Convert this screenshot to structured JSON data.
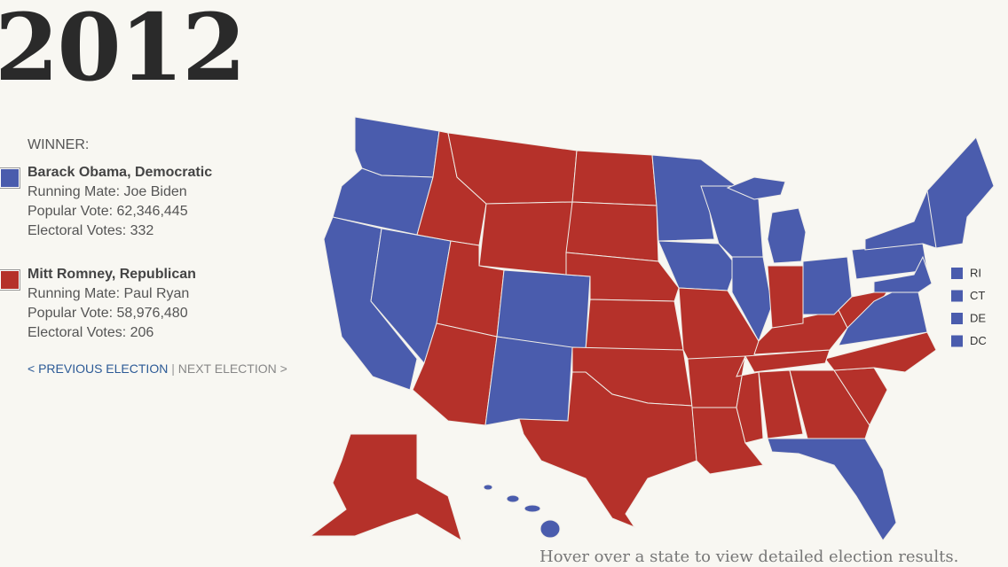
{
  "header": {
    "year": "2012"
  },
  "winner_label": "WINNER:",
  "candidates": [
    {
      "name": "Barack Obama, Democratic",
      "running_mate": "Running Mate: Joe Biden",
      "popular_vote": "Popular Vote: 62,346,445",
      "electoral_votes": "Electoral Votes: 332",
      "color": "#4a5cad"
    },
    {
      "name": "Mitt Romney, Republican",
      "running_mate": "Running Mate: Paul Ryan",
      "popular_vote": "Popular Vote: 58,976,480",
      "electoral_votes": "Electoral Votes: 206",
      "color": "#b5312a"
    }
  ],
  "nav": {
    "previous": "< PREVIOUS ELECTION",
    "separator": "|",
    "next": "NEXT ELECTION >"
  },
  "small_states": [
    "RI",
    "CT",
    "DE",
    "DC"
  ],
  "footer": "Hover over a state to view detailed election results."
}
